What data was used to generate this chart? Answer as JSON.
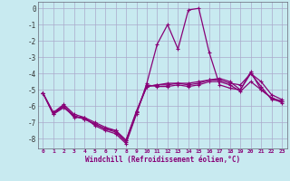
{
  "bg_color": "#c8eaf0",
  "grid_color": "#aaaacc",
  "line_color": "#880077",
  "xlim": [
    -0.5,
    23.5
  ],
  "ylim": [
    -8.6,
    0.4
  ],
  "xticks": [
    0,
    1,
    2,
    3,
    4,
    5,
    6,
    7,
    8,
    9,
    10,
    11,
    12,
    13,
    14,
    15,
    16,
    17,
    18,
    19,
    20,
    21,
    22,
    23
  ],
  "yticks": [
    0,
    -1,
    -2,
    -3,
    -4,
    -5,
    -6,
    -7,
    -8
  ],
  "xlabel": "Windchill (Refroidissement éolien,°C)",
  "lines": [
    {
      "x": [
        0,
        1,
        2,
        3,
        4,
        5,
        6,
        7,
        8,
        9,
        10,
        11,
        12,
        13,
        14,
        15,
        16,
        17,
        18,
        19,
        20,
        21,
        22,
        23
      ],
      "y": [
        -5.2,
        -6.5,
        -6.0,
        -6.7,
        -6.7,
        -7.2,
        -7.5,
        -7.7,
        -8.3,
        -6.5,
        -4.6,
        -2.2,
        -1.0,
        -2.5,
        -0.1,
        0.0,
        -2.7,
        -4.7,
        -4.9,
        -5.0,
        -4.0,
        -4.8,
        -5.6,
        -5.7
      ]
    },
    {
      "x": [
        0,
        1,
        2,
        3,
        4,
        5,
        6,
        7,
        8,
        9,
        10,
        11,
        12,
        13,
        14,
        15,
        16,
        17,
        18,
        19,
        20,
        21,
        22,
        23
      ],
      "y": [
        -5.2,
        -6.5,
        -6.1,
        -6.6,
        -6.8,
        -7.1,
        -7.4,
        -7.5,
        -8.1,
        -6.4,
        -4.8,
        -4.7,
        -4.6,
        -4.6,
        -4.6,
        -4.5,
        -4.4,
        -4.4,
        -4.6,
        -4.7,
        -4.0,
        -4.5,
        -5.3,
        -5.6
      ]
    },
    {
      "x": [
        0,
        1,
        2,
        3,
        4,
        5,
        6,
        7,
        8,
        9,
        10,
        11,
        12,
        13,
        14,
        15,
        16,
        17,
        18,
        19,
        20,
        21,
        22,
        23
      ],
      "y": [
        -5.2,
        -6.4,
        -6.0,
        -6.6,
        -6.8,
        -7.1,
        -7.4,
        -7.6,
        -8.2,
        -6.4,
        -4.7,
        -4.8,
        -4.8,
        -4.7,
        -4.8,
        -4.7,
        -4.5,
        -4.5,
        -4.7,
        -5.1,
        -4.5,
        -5.0,
        -5.5,
        -5.8
      ]
    },
    {
      "x": [
        0,
        1,
        2,
        3,
        4,
        5,
        6,
        7,
        8,
        9,
        10,
        11,
        12,
        13,
        14,
        15,
        16,
        17,
        18,
        19,
        20,
        21,
        22,
        23
      ],
      "y": [
        -5.2,
        -6.4,
        -5.9,
        -6.5,
        -6.7,
        -7.0,
        -7.3,
        -7.5,
        -8.1,
        -6.3,
        -4.8,
        -4.7,
        -4.7,
        -4.6,
        -4.7,
        -4.6,
        -4.4,
        -4.3,
        -4.5,
        -5.0,
        -3.9,
        -5.0,
        -5.5,
        -5.7
      ]
    }
  ]
}
